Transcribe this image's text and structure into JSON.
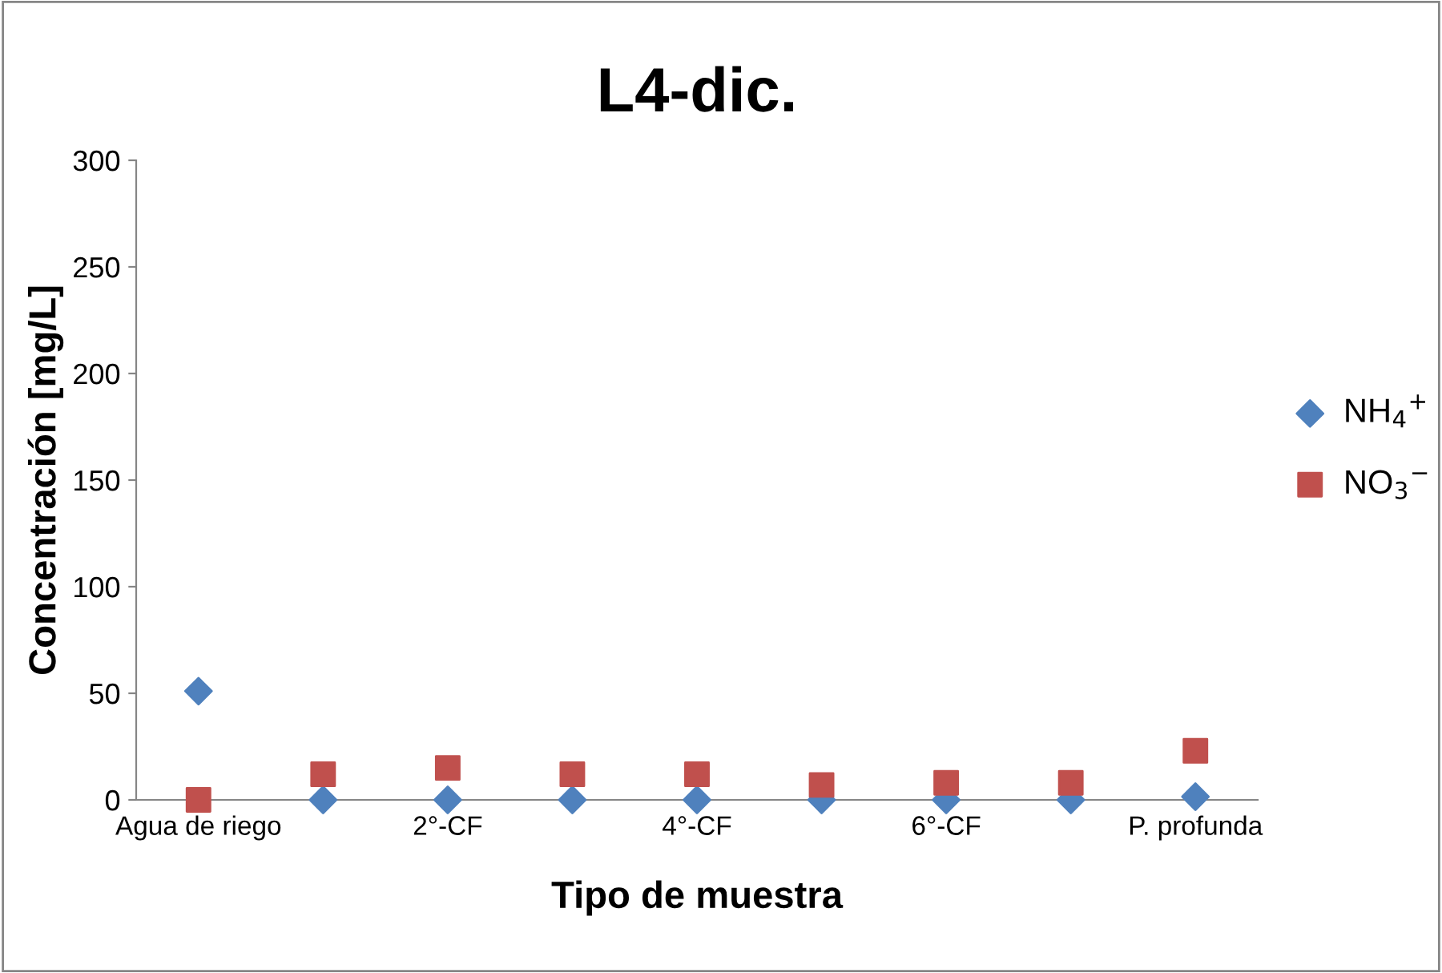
{
  "chart_data": {
    "type": "scatter",
    "title": "L4-dic.",
    "xlabel": "Tipo de muestra",
    "ylabel": "Concentración [mg/L]",
    "categories": [
      "Agua de riego",
      null,
      "2°-CF",
      null,
      "4°-CF",
      null,
      "6°-CF",
      null,
      "P. profunda"
    ],
    "series": [
      {
        "name": "NH$_{4}$$^{+}$",
        "color": "#4f81bd",
        "marker": "diamond",
        "values": [
          51,
          0,
          0,
          0,
          0,
          0,
          0,
          0,
          1.5
        ]
      },
      {
        "name": "NO$_{3}$$^{−}$",
        "color": "#c0504d",
        "marker": "square",
        "values": [
          0,
          12,
          15,
          12,
          12,
          7,
          8,
          8,
          23
        ]
      }
    ],
    "ylim": [
      0,
      300
    ],
    "yticks": [
      0,
      50,
      100,
      150,
      200,
      250,
      300
    ],
    "grid": false,
    "legend": "right"
  }
}
